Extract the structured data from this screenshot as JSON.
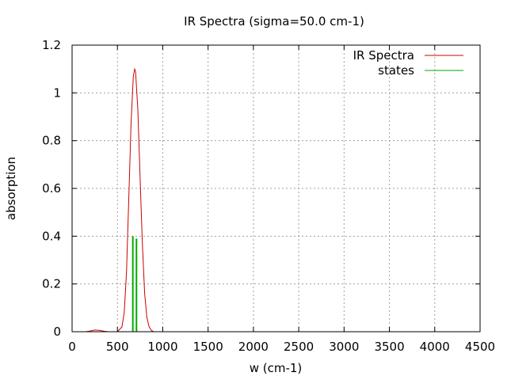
{
  "chart_data": {
    "type": "line",
    "title": "IR Spectra (sigma=50.0 cm-1)",
    "xlabel": "w (cm-1)",
    "ylabel": "absorption",
    "xlim": [
      0,
      4500
    ],
    "ylim": [
      0,
      1.2
    ],
    "x_ticks": [
      "0",
      "500",
      "1000",
      "1500",
      "2000",
      "2500",
      "3000",
      "3500",
      "4000",
      "4500"
    ],
    "y_ticks": [
      "0",
      "0.2",
      "0.4",
      "0.6",
      "0.8",
      "1",
      "1.2"
    ],
    "grid": true,
    "legend_position": "top-right",
    "series": [
      {
        "name": "IR Spectra",
        "color": "#cc0000",
        "kind": "line",
        "x": [
          150,
          200,
          250,
          300,
          350,
          400,
          450,
          500,
          550,
          575,
          600,
          625,
          650,
          675,
          690,
          700,
          725,
          750,
          775,
          800,
          825,
          850,
          875,
          900,
          950,
          1000,
          4300
        ],
        "y": [
          0.0,
          0.003,
          0.007,
          0.006,
          0.002,
          0.0,
          0.0,
          0.0,
          0.02,
          0.08,
          0.25,
          0.55,
          0.87,
          1.07,
          1.1,
          1.09,
          0.93,
          0.65,
          0.37,
          0.16,
          0.06,
          0.02,
          0.005,
          0.0,
          0.0,
          0.0,
          0.0
        ]
      },
      {
        "name": "states",
        "color": "#00aa00",
        "kind": "impulse",
        "x": [
          670,
          710
        ],
        "y": [
          0.4,
          0.39
        ]
      }
    ]
  }
}
